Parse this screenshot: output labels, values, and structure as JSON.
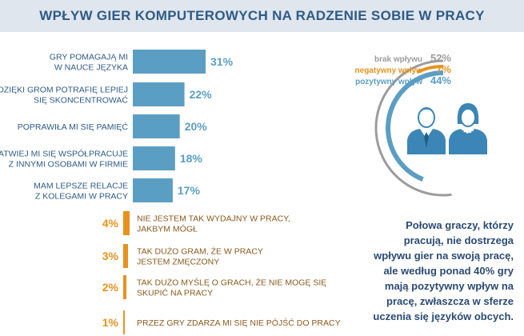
{
  "title": "WPŁYW GIER KOMPUTEROWYCH NA RADZENIE SOBIE W PRACY",
  "colors": {
    "positive": "#5b9ec4",
    "negative": "#e8921e",
    "neutral": "#9c9c9c",
    "title_bg": "#dfe6ee",
    "title_text": "#2f5a86",
    "summary_text": "#2b4a73",
    "person": "#3b86b6"
  },
  "chart_data": [
    {
      "type": "bar",
      "orientation": "horizontal",
      "title": "",
      "xlim": [
        0,
        31
      ],
      "series": [
        {
          "name": "pozytywny wpływ",
          "color": "#5b9ec4",
          "items": [
            {
              "label_lines": [
                "GRY POMAGAJĄ MI",
                "W NAUCE JĘZYKA"
              ],
              "value": 31,
              "value_label": "31%"
            },
            {
              "label_lines": [
                "DZIĘKI GROM POTRAFIĘ LEPIEJ",
                "SIĘ SKONCENTROWAĆ"
              ],
              "value": 22,
              "value_label": "22%"
            },
            {
              "label_lines": [
                "POPRAWIŁA MI SIĘ PAMIĘĆ"
              ],
              "value": 20,
              "value_label": "20%"
            },
            {
              "label_lines": [
                "ŁATWIEJ MI SIĘ WSPÓŁPRACUJE",
                "Z INNYMI OSOBAMI W FIRMIE"
              ],
              "value": 18,
              "value_label": "18%"
            },
            {
              "label_lines": [
                "MAM LEPSZE RELACJE",
                "Z KOLEGAMI W PRACY"
              ],
              "value": 17,
              "value_label": "17%"
            }
          ]
        },
        {
          "name": "negatywny wpływ",
          "color": "#e8921e",
          "items": [
            {
              "label_lines": [
                "NIE JESTEM TAK WYDAJNY W PRACY,",
                "JAKBYM MÓGŁ"
              ],
              "value": 4,
              "value_label": "4%"
            },
            {
              "label_lines": [
                "TAK DUŻO GRAM, ŻE W PRACY",
                "JESTEM ZMĘCZONY"
              ],
              "value": 3,
              "value_label": "3%"
            },
            {
              "label_lines": [
                "TAK DUŻO MYŚLĘ O GRACH, ŻE NIE MOGĘ SIĘ",
                "SKUPIĆ NA PRACY"
              ],
              "value": 2,
              "value_label": "2%"
            },
            {
              "label_lines": [
                "PRZEZ GRY ZDARZA MI SIĘ NIE PÓJŚĆ DO PRACY"
              ],
              "value": 1,
              "value_label": "1%"
            }
          ]
        }
      ]
    },
    {
      "type": "pie",
      "variant": "concentric-arcs",
      "slices": [
        {
          "label": "brak wpływu",
          "value": 52,
          "value_label": "52%",
          "color": "#9c9c9c"
        },
        {
          "label": "negatywny wpływ",
          "value": 7,
          "value_label": "7%",
          "color": "#e8921e"
        },
        {
          "label": "pozytywny wpływ",
          "value": 44,
          "value_label": "44%",
          "color": "#5b9ec4"
        }
      ]
    }
  ],
  "summary_lines": [
    "Połowa graczy, którzy",
    "pracują, nie dostrzega",
    "wpływu gier na swoją pracę,",
    "ale według ponad 40% gry",
    "mają pozytywny wpływ na",
    "pracę, zwłaszcza w sferze",
    "uczenia się języków obcych."
  ]
}
